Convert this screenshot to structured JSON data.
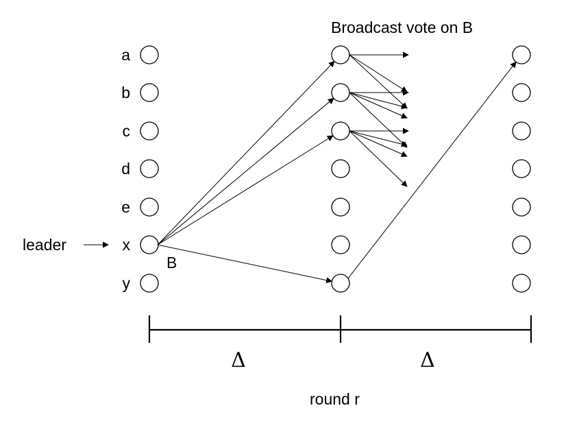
{
  "title": "Broadcast vote on B",
  "node_labels": [
    "a",
    "b",
    "c",
    "d",
    "e",
    "x",
    "y"
  ],
  "leader_label": "leader",
  "block_label": "B",
  "intervals": [
    "Δ",
    "Δ"
  ],
  "round_label": "round r"
}
